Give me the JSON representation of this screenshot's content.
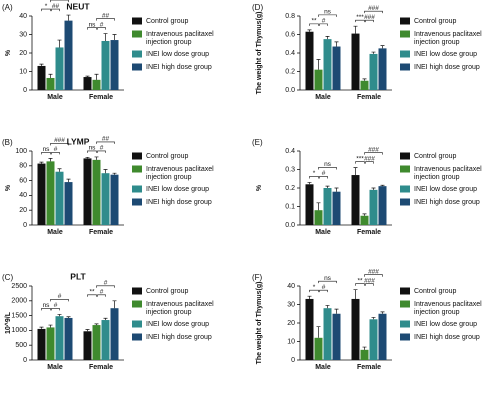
{
  "chart_data": [
    {
      "type": "bar",
      "label": "(A)",
      "title": "NEUT",
      "y_label": "%",
      "categories": [
        "Male",
        "Female"
      ],
      "series": [
        {
          "name": "Control group",
          "color": "#111111",
          "values": [
            13,
            7
          ],
          "errors": [
            1,
            0.5
          ]
        },
        {
          "name": "Intravenous paclitaxel injection group",
          "color": "#3f8a2e",
          "values": [
            6.5,
            5.5
          ],
          "errors": [
            2,
            3
          ]
        },
        {
          "name": "INEI low dose group",
          "color": "#2f8c8c",
          "values": [
            23,
            26.5
          ],
          "errors": [
            4,
            4
          ]
        },
        {
          "name": "INEI high dose group",
          "color": "#1d4a73",
          "values": [
            37.5,
            27
          ],
          "errors": [
            3,
            3
          ]
        }
      ],
      "ylim": [
        0,
        40
      ],
      "yticks": [
        0,
        10,
        20,
        30,
        40
      ],
      "significance": [
        [
          "*",
          "##",
          "###"
        ],
        [
          "ns",
          "#",
          "##"
        ]
      ]
    },
    {
      "type": "bar",
      "label": "(B)",
      "title": "LYMP",
      "y_label": "%",
      "categories": [
        "Male",
        "Female"
      ],
      "series": [
        {
          "name": "Control group",
          "color": "#111111",
          "values": [
            83,
            90
          ],
          "errors": [
            2,
            1.5
          ]
        },
        {
          "name": "Intravenous paclitaxel injection group",
          "color": "#3f8a2e",
          "values": [
            86,
            88
          ],
          "errors": [
            4,
            4
          ]
        },
        {
          "name": "INEI low dose group",
          "color": "#2f8c8c",
          "values": [
            72,
            70
          ],
          "errors": [
            4,
            5
          ]
        },
        {
          "name": "INEI high dose group",
          "color": "#1d4a73",
          "values": [
            58,
            68
          ],
          "errors": [
            4,
            2
          ]
        }
      ],
      "ylim": [
        0,
        100
      ],
      "yticks": [
        0,
        20,
        40,
        60,
        80,
        100
      ],
      "significance": [
        [
          "ns",
          "#",
          "###"
        ],
        [
          "ns",
          "#",
          "##"
        ]
      ]
    },
    {
      "type": "bar",
      "label": "(C)",
      "title": "PLT",
      "y_label": "10^9/L",
      "categories": [
        "Male",
        "Female"
      ],
      "series": [
        {
          "name": "Control group",
          "color": "#111111",
          "values": [
            1050,
            970
          ],
          "errors": [
            60,
            60
          ]
        },
        {
          "name": "Intravenous paclitaxel injection group",
          "color": "#3f8a2e",
          "values": [
            1100,
            1180
          ],
          "errors": [
            80,
            40
          ]
        },
        {
          "name": "INEI low dose group",
          "color": "#2f8c8c",
          "values": [
            1480,
            1350
          ],
          "errors": [
            60,
            60
          ]
        },
        {
          "name": "INEI high dose group",
          "color": "#1d4a73",
          "values": [
            1420,
            1750
          ],
          "errors": [
            40,
            250
          ]
        }
      ],
      "ylim": [
        0,
        2500
      ],
      "yticks": [
        0,
        500,
        1000,
        1500,
        2000,
        2500
      ],
      "significance": [
        [
          "ns",
          "#",
          "#"
        ],
        [
          "**",
          "#",
          "#"
        ]
      ]
    },
    {
      "type": "bar",
      "label": "(D)",
      "y_label": "The weight of Thymus(g)",
      "categories": [
        "Male",
        "Female"
      ],
      "series": [
        {
          "name": "Control group",
          "color": "#111111",
          "values": [
            0.63,
            0.61
          ],
          "errors": [
            0.02,
            0.08
          ]
        },
        {
          "name": "Intravenous paclitaxel injection group",
          "color": "#3f8a2e",
          "values": [
            0.22,
            0.1
          ],
          "errors": [
            0.11,
            0.02
          ]
        },
        {
          "name": "INEI low dose group",
          "color": "#2f8c8c",
          "values": [
            0.55,
            0.39
          ],
          "errors": [
            0.03,
            0.02
          ]
        },
        {
          "name": "INEI high dose group",
          "color": "#1d4a73",
          "values": [
            0.47,
            0.45
          ],
          "errors": [
            0.05,
            0.03
          ]
        }
      ],
      "ylim": [
        0,
        0.8
      ],
      "yticks": [
        {
          "value": 0,
          "label": "0.0"
        },
        0.2,
        0.4,
        0.6,
        0.8
      ],
      "significance": [
        [
          "**",
          "#",
          "ns"
        ],
        [
          "***",
          "###",
          "###"
        ]
      ]
    },
    {
      "type": "bar",
      "label": "(E)",
      "y_label": "%",
      "categories": [
        "Male",
        "Female"
      ],
      "series": [
        {
          "name": "Control group",
          "color": "#111111",
          "values": [
            0.22,
            0.27
          ],
          "errors": [
            0.01,
            0.04
          ]
        },
        {
          "name": "Intravenous paclitaxel injection group",
          "color": "#3f8a2e",
          "values": [
            0.08,
            0.05
          ],
          "errors": [
            0.04,
            0.01
          ]
        },
        {
          "name": "INEI low dose group",
          "color": "#2f8c8c",
          "values": [
            0.2,
            0.19
          ],
          "errors": [
            0.01,
            0.01
          ]
        },
        {
          "name": "INEI high dose group",
          "color": "#1d4a73",
          "values": [
            0.18,
            0.21
          ],
          "errors": [
            0.02,
            0.005
          ]
        }
      ],
      "ylim": [
        0,
        0.4
      ],
      "yticks": [
        {
          "value": 0,
          "label": "0.0"
        },
        0.1,
        0.2,
        0.3,
        0.4
      ],
      "significance": [
        [
          "*",
          "#",
          "ns"
        ],
        [
          "***",
          "###",
          "###"
        ]
      ]
    },
    {
      "type": "bar",
      "label": "(F)",
      "y_label": "The weight of Thymus(g)",
      "categories": [
        "Male",
        "Female"
      ],
      "series": [
        {
          "name": "Control group",
          "color": "#111111",
          "values": [
            33,
            33
          ],
          "errors": [
            1.5,
            5
          ]
        },
        {
          "name": "Intravenous paclitaxel injection group",
          "color": "#3f8a2e",
          "values": [
            12,
            5.5
          ],
          "errors": [
            6,
            1.5
          ]
        },
        {
          "name": "INEI low dose group",
          "color": "#2f8c8c",
          "values": [
            28,
            22
          ],
          "errors": [
            1.5,
            1
          ]
        },
        {
          "name": "INEI high dose group",
          "color": "#1d4a73",
          "values": [
            25,
            25
          ],
          "errors": [
            2.5,
            1
          ]
        }
      ],
      "ylim": [
        0,
        40
      ],
      "yticks": [
        0,
        10,
        20,
        30,
        40
      ],
      "significance": [
        [
          "*",
          "#",
          "ns"
        ],
        [
          "**",
          "###",
          "###"
        ]
      ]
    }
  ]
}
